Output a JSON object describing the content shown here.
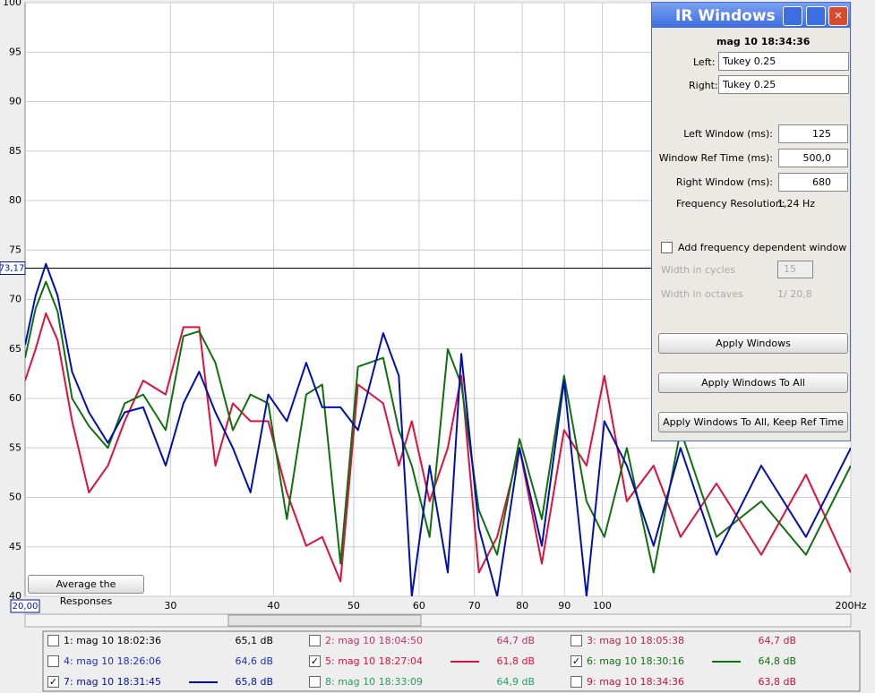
{
  "chart_data": {
    "type": "line",
    "xlim": [
      20,
      200
    ],
    "ylim": [
      40,
      100
    ],
    "log_x": true,
    "grid": true,
    "xticks": [
      30,
      40,
      50,
      60,
      70,
      80,
      90,
      100,
      {
        "value": 200,
        "label": "200Hz"
      }
    ],
    "yticks": [
      40,
      45,
      50,
      55,
      60,
      65,
      70,
      75,
      80,
      85,
      90,
      95,
      100
    ],
    "cursor": {
      "y": {
        "value": 73.17,
        "label": "73,17"
      },
      "x": {
        "value": 20,
        "label": "20,00"
      }
    },
    "x": [
      20.0,
      20.6,
      21.2,
      21.9,
      22.8,
      23.9,
      25.2,
      26.4,
      27.8,
      29.6,
      31.1,
      32.5,
      34.0,
      35.7,
      37.5,
      39.4,
      41.5,
      43.8,
      45.8,
      48.2,
      50.6,
      54.3,
      56.7,
      58.8,
      61.8,
      65.0,
      67.5,
      70.9,
      74.6,
      79.4,
      84.5,
      89.9,
      95.7,
      100.6,
      107.1,
      115.4,
      124.4,
      137.5,
      155.8,
      176.5,
      200
    ],
    "series": [
      {
        "name": "1: mag 10 18:02:36",
        "color": "#000000",
        "checked": false,
        "level": "65,1 dB"
      },
      {
        "name": "2: mag 10 18:04:50",
        "color": "#c0306a",
        "checked": false,
        "level": "64,7 dB"
      },
      {
        "name": "3: mag 10 18:05:38",
        "color": "#c02040",
        "checked": false,
        "level": "64,7 dB"
      },
      {
        "name": "4: mag 10 18:26:06",
        "color": "#2030c0",
        "checked": false,
        "level": "64,6 dB"
      },
      {
        "name": "5: mag 10 18:27:04",
        "color": "#e0103c",
        "checked": true,
        "level": "61,8 dB",
        "values": [
          61.8,
          65.0,
          68.6,
          65.9,
          57.7,
          50.5,
          53.2,
          57.7,
          61.8,
          60.4,
          67.2,
          67.2,
          53.2,
          59.5,
          57.7,
          57.7,
          50.5,
          45.1,
          46.0,
          41.5,
          61.4,
          59.5,
          53.2,
          57.7,
          49.6,
          55.0,
          62.3,
          42.4,
          46.0,
          55.0,
          43.3,
          56.8,
          53.2,
          62.3,
          49.6,
          53.2,
          46.0,
          51.4,
          44.2,
          52.3,
          42.4
        ]
      },
      {
        "name": "6: mag 10 18:30:16",
        "color": "#107010",
        "checked": true,
        "level": "64,8 dB",
        "values": [
          64.1,
          69.1,
          71.8,
          68.8,
          60.0,
          57.2,
          55.0,
          59.5,
          60.4,
          56.8,
          66.3,
          66.8,
          63.6,
          56.8,
          60.4,
          59.5,
          47.8,
          60.4,
          61.4,
          43.3,
          63.2,
          64.1,
          56.8,
          53.2,
          46.0,
          65.0,
          61.4,
          48.7,
          44.2,
          55.9,
          47.8,
          62.3,
          49.6,
          46.0,
          55.0,
          42.4,
          56.8,
          46.0,
          49.6,
          44.2,
          53.2
        ]
      },
      {
        "name": "7: mag 10 18:31:45",
        "color": "#0010b0",
        "checked": true,
        "level": "65,8 dB",
        "values": [
          65.4,
          70.4,
          73.6,
          70.4,
          62.7,
          58.6,
          55.5,
          58.6,
          59.1,
          53.2,
          59.5,
          62.7,
          58.6,
          55.0,
          50.5,
          60.4,
          57.7,
          63.6,
          59.1,
          59.1,
          56.8,
          66.6,
          62.3,
          40,
          53.2,
          42.4,
          64.5,
          46.9,
          40,
          55.0,
          45.1,
          61.8,
          40,
          57.7,
          53.2,
          45.1,
          55.0,
          44.2,
          53.2,
          46.0,
          55.0
        ]
      },
      {
        "name": "8: mag 10 18:33:09",
        "color": "#20a060",
        "checked": false,
        "level": "64,9 dB"
      },
      {
        "name": "9: mag 10 18:34:36",
        "color": "#c01040",
        "checked": false,
        "level": "63,8 dB"
      }
    ]
  },
  "average_button": "Average the Responses",
  "dialog": {
    "title": "IR Windows",
    "timestamp": "mag 10 18:34:36",
    "left_label": "Left:",
    "left": "Tukey 0.25",
    "right_label": "Right:",
    "right": "Tukey 0.25",
    "fields": [
      {
        "label": "Left Window (ms):",
        "value": "125"
      },
      {
        "label": "Window Ref Time (ms):",
        "value": "500,0"
      },
      {
        "label": "Right Window (ms):",
        "value": "680"
      }
    ],
    "freq_res_label": "Frequency Resolution:",
    "freq_res": "1,24 Hz",
    "checkbox": "Add frequency dependent window",
    "cycles_label": "Width in cycles",
    "cycles": "15",
    "octaves_label": "Width in octaves",
    "octaves": "1/ 20,8",
    "buttons": [
      "Apply Windows",
      "Apply Windows To All",
      "Apply Windows To All, Keep Ref Time"
    ]
  }
}
